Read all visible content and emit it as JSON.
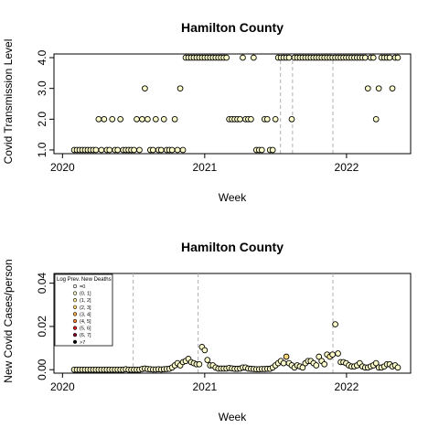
{
  "chart_data": [
    {
      "type": "scatter",
      "title": "Hamilton County",
      "xlabel": "Week",
      "ylabel": "Covid Transmission Level",
      "xlim": [
        "2019-12-10",
        "2022-06-15"
      ],
      "ylim": [
        0.88,
        4.12
      ],
      "xticks": [
        "2020",
        "2021",
        "2022"
      ],
      "xtick_dates": [
        "2020-01-01",
        "2021-01-01",
        "2022-01-01"
      ],
      "yticks": [
        "1.0",
        "2.0",
        "3.0",
        "4.0"
      ],
      "ytick_values": [
        1,
        2,
        3,
        4
      ],
      "vlines": [
        "2021-07-15",
        "2021-08-15",
        "2021-11-27"
      ],
      "point_fill": "#ffffcc",
      "point_stroke": "#000000",
      "x": [
        "2020-01-31",
        "2020-02-07",
        "2020-02-14",
        "2020-02-21",
        "2020-02-28",
        "2020-03-06",
        "2020-03-13",
        "2020-03-20",
        "2020-03-27",
        "2020-04-03",
        "2020-04-10",
        "2020-04-17",
        "2020-04-24",
        "2020-05-01",
        "2020-05-08",
        "2020-05-15",
        "2020-05-22",
        "2020-05-29",
        "2020-06-05",
        "2020-06-12",
        "2020-06-19",
        "2020-06-26",
        "2020-07-03",
        "2020-07-10",
        "2020-07-17",
        "2020-07-24",
        "2020-07-31",
        "2020-08-07",
        "2020-08-14",
        "2020-08-21",
        "2020-08-28",
        "2020-09-04",
        "2020-09-11",
        "2020-09-18",
        "2020-09-25",
        "2020-10-02",
        "2020-10-09",
        "2020-10-16",
        "2020-10-23",
        "2020-10-30",
        "2020-11-06",
        "2020-11-13",
        "2020-11-20",
        "2020-11-27",
        "2020-12-04",
        "2020-12-11",
        "2020-12-18",
        "2020-12-25",
        "2021-01-01",
        "2021-01-08",
        "2021-01-15",
        "2021-01-22",
        "2021-01-29",
        "2021-02-05",
        "2021-02-12",
        "2021-02-19",
        "2021-02-26",
        "2021-03-05",
        "2021-03-12",
        "2021-03-19",
        "2021-03-26",
        "2021-04-02",
        "2021-04-09",
        "2021-04-16",
        "2021-04-23",
        "2021-04-30",
        "2021-05-07",
        "2021-05-14",
        "2021-05-21",
        "2021-05-28",
        "2021-06-04",
        "2021-06-11",
        "2021-06-18",
        "2021-06-25",
        "2021-07-02",
        "2021-07-09",
        "2021-07-16",
        "2021-07-23",
        "2021-07-30",
        "2021-08-06",
        "2021-08-13",
        "2021-08-20",
        "2021-08-27",
        "2021-09-03",
        "2021-09-10",
        "2021-09-17",
        "2021-09-24",
        "2021-10-01",
        "2021-10-08",
        "2021-10-15",
        "2021-10-22",
        "2021-10-29",
        "2021-11-05",
        "2021-11-12",
        "2021-11-19",
        "2021-11-26",
        "2021-12-03",
        "2021-12-10",
        "2021-12-17",
        "2021-12-24",
        "2021-12-31",
        "2022-01-07",
        "2022-01-14",
        "2022-01-21",
        "2022-01-28",
        "2022-02-04",
        "2022-02-11",
        "2022-02-18",
        "2022-02-25",
        "2022-03-04",
        "2022-03-11",
        "2022-03-18",
        "2022-03-25",
        "2022-04-01",
        "2022-04-08",
        "2022-04-15",
        "2022-04-22",
        "2022-04-29",
        "2022-05-06",
        "2022-05-13"
      ],
      "y": [
        1,
        1,
        1,
        1,
        1,
        1,
        1,
        1,
        1,
        2,
        1,
        2,
        1,
        1,
        2,
        1,
        1,
        2,
        1,
        1,
        1,
        1,
        1,
        2,
        1,
        2,
        3,
        2,
        1,
        1,
        2,
        1,
        1,
        2,
        1,
        1,
        1,
        2,
        1,
        3,
        1,
        4,
        4,
        4,
        4,
        4,
        4,
        4,
        4,
        4,
        4,
        4,
        4,
        4,
        4,
        4,
        4,
        2,
        2,
        2,
        2,
        2,
        4,
        2,
        2,
        2,
        4,
        1,
        1,
        1,
        2,
        2,
        1,
        1,
        2,
        4,
        4,
        4,
        4,
        4,
        2,
        4,
        4,
        4,
        4,
        4,
        4,
        4,
        4,
        4,
        4,
        4,
        4,
        4,
        4,
        4,
        4,
        4,
        4,
        4,
        4,
        4,
        4,
        4,
        4,
        4,
        4,
        4,
        3,
        4,
        4,
        2,
        3,
        4,
        4,
        4,
        4,
        3,
        4,
        4
      ]
    },
    {
      "type": "scatter",
      "title": "Hamilton County",
      "xlabel": "Week",
      "ylabel": "New Covid Cases/person",
      "xlim": [
        "2019-12-10",
        "2022-06-15"
      ],
      "ylim": [
        -0.0016,
        0.0445
      ],
      "xticks": [
        "2020",
        "2021",
        "2022"
      ],
      "xtick_dates": [
        "2020-01-01",
        "2021-01-01",
        "2022-01-01"
      ],
      "yticks": [
        "0.00",
        "0.02",
        "0.04"
      ],
      "ytick_values": [
        0,
        0.02,
        0.04
      ],
      "vlines": [
        "2020-07-01",
        "2020-12-15",
        "2021-11-27"
      ],
      "legend": {
        "title": "Log Prev. New Deaths",
        "position": "top-left",
        "entries": [
          "=0",
          "(0, 1]",
          "(1, 2]",
          "(2, 3]",
          "(3, 4]",
          "(4, 5]",
          "(5, 6]",
          "(6, 7]",
          ">7"
        ],
        "colors": [
          "#ffffff",
          "#ffffcc",
          "#ffeda0",
          "#fed976",
          "#feb24c",
          "#fd8d3c",
          "#e31a1c",
          "#800026",
          "#000000"
        ]
      },
      "x": [
        "2020-01-31",
        "2020-02-07",
        "2020-02-14",
        "2020-02-21",
        "2020-02-28",
        "2020-03-06",
        "2020-03-13",
        "2020-03-20",
        "2020-03-27",
        "2020-04-03",
        "2020-04-10",
        "2020-04-17",
        "2020-04-24",
        "2020-05-01",
        "2020-05-08",
        "2020-05-15",
        "2020-05-22",
        "2020-05-29",
        "2020-06-05",
        "2020-06-12",
        "2020-06-19",
        "2020-06-26",
        "2020-07-03",
        "2020-07-10",
        "2020-07-17",
        "2020-07-24",
        "2020-07-31",
        "2020-08-07",
        "2020-08-14",
        "2020-08-21",
        "2020-08-28",
        "2020-09-04",
        "2020-09-11",
        "2020-09-18",
        "2020-09-25",
        "2020-10-02",
        "2020-10-09",
        "2020-10-16",
        "2020-10-23",
        "2020-10-30",
        "2020-11-06",
        "2020-11-13",
        "2020-11-20",
        "2020-11-27",
        "2020-12-04",
        "2020-12-11",
        "2020-12-18",
        "2020-12-25",
        "2021-01-01",
        "2021-01-08",
        "2021-01-15",
        "2021-01-22",
        "2021-01-29",
        "2021-02-05",
        "2021-02-12",
        "2021-02-19",
        "2021-02-26",
        "2021-03-05",
        "2021-03-12",
        "2021-03-19",
        "2021-03-26",
        "2021-04-02",
        "2021-04-09",
        "2021-04-16",
        "2021-04-23",
        "2021-04-30",
        "2021-05-07",
        "2021-05-14",
        "2021-05-21",
        "2021-05-28",
        "2021-06-04",
        "2021-06-11",
        "2021-06-18",
        "2021-06-25",
        "2021-07-02",
        "2021-07-09",
        "2021-07-16",
        "2021-07-23",
        "2021-07-30",
        "2021-08-06",
        "2021-08-13",
        "2021-08-20",
        "2021-08-27",
        "2021-09-03",
        "2021-09-10",
        "2021-09-17",
        "2021-09-24",
        "2021-10-01",
        "2021-10-08",
        "2021-10-15",
        "2021-10-22",
        "2021-10-29",
        "2021-11-05",
        "2021-11-12",
        "2021-11-19",
        "2021-11-26",
        "2021-12-03",
        "2021-12-10",
        "2021-12-17",
        "2021-12-24",
        "2021-12-31",
        "2022-01-07",
        "2022-01-14",
        "2022-01-21",
        "2022-01-28",
        "2022-02-04",
        "2022-02-11",
        "2022-02-18",
        "2022-02-25",
        "2022-03-04",
        "2022-03-11",
        "2022-03-18",
        "2022-03-25",
        "2022-04-01",
        "2022-04-08",
        "2022-04-15",
        "2022-04-22",
        "2022-04-29",
        "2022-05-06",
        "2022-05-13"
      ],
      "y": [
        0,
        0,
        0,
        0,
        0,
        0,
        0,
        0,
        0,
        0,
        0,
        0,
        0,
        0,
        0,
        0,
        0,
        0,
        0,
        0.0002,
        0,
        0,
        0,
        0,
        0,
        0.0003,
        0.0005,
        0.0003,
        0.0002,
        0.0001,
        0.0001,
        0.0002,
        0.0001,
        0.0002,
        0.0003,
        0.0004,
        0.001,
        0.002,
        0.003,
        0.002,
        0.0035,
        0.004,
        0.005,
        0.0035,
        0.003,
        0.0025,
        0.0025,
        0.0105,
        0.009,
        0.0045,
        0.002,
        0.002,
        0.001,
        0.0005,
        0.0005,
        0.0005,
        0.0005,
        0.0008,
        0.0006,
        0.0004,
        0.0004,
        0.0005,
        0.001,
        0.001,
        0.0005,
        0.0004,
        0.0003,
        0.0002,
        0.0002,
        0.0003,
        0.0003,
        0.0004,
        0.0004,
        0.001,
        0.002,
        0.003,
        0.004,
        0.003,
        0.006,
        0.003,
        0.002,
        0.001,
        0.002,
        0.0015,
        0.001,
        0.003,
        0.004,
        0.004,
        0.003,
        0.002,
        0.006,
        0.004,
        0.0025,
        0.007,
        0.006,
        0.007,
        0.021,
        0.0075,
        0.0035,
        0.0035,
        0.003,
        0.002,
        0.0015,
        0.0015,
        0.002,
        0.003,
        0.0015,
        0.001,
        0.001,
        0.0015,
        0.002,
        0.003,
        0.001,
        0.001,
        0.0015,
        0.0025,
        0.0025,
        0.0015,
        0.002,
        0.001
      ],
      "point_fills": [
        "#ffffcc",
        "#ffffcc",
        "#ffffcc",
        "#ffffcc",
        "#ffffcc",
        "#ffffcc",
        "#ffffcc",
        "#ffffcc",
        "#ffffcc",
        "#ffffcc",
        "#ffffcc",
        "#ffffcc",
        "#ffffcc",
        "#ffffcc",
        "#ffffcc",
        "#ffffcc",
        "#ffffcc",
        "#ffffcc",
        "#ffffcc",
        "#ffffcc",
        "#ffffcc",
        "#ffffcc",
        "#ffffcc",
        "#ffffcc",
        "#ffffcc",
        "#ffffcc",
        "#ffffcc",
        "#ffffcc",
        "#ffffcc",
        "#ffffcc",
        "#ffffcc",
        "#ffffcc",
        "#ffffcc",
        "#ffffcc",
        "#ffffcc",
        "#ffffcc",
        "#ffffcc",
        "#ffffcc",
        "#ffffcc",
        "#ffffcc",
        "#ffffcc",
        "#ffffcc",
        "#ffffcc",
        "#ffffcc",
        "#ffffcc",
        "#ffffcc",
        "#ffffcc",
        "#ffffcc",
        "#ffffcc",
        "#ffffcc",
        "#ffffcc",
        "#ffffcc",
        "#ffffcc",
        "#ffffcc",
        "#ffffcc",
        "#ffffcc",
        "#ffffcc",
        "#ffffcc",
        "#ffffcc",
        "#ffffcc",
        "#ffffcc",
        "#ffffcc",
        "#ffffcc",
        "#ffffcc",
        "#ffffcc",
        "#ffffcc",
        "#ffffcc",
        "#ffffcc",
        "#ffffcc",
        "#ffffcc",
        "#ffffcc",
        "#ffffcc",
        "#ffffcc",
        "#ffffcc",
        "#ffffcc",
        "#ffffcc",
        "#ffffcc",
        "#ffffcc",
        "#fed976",
        "#ffffcc",
        "#ffffcc",
        "#ffffcc",
        "#ffffcc",
        "#ffffcc",
        "#ffffcc",
        "#ffffcc",
        "#ffffcc",
        "#ffffcc",
        "#ffffcc",
        "#ffffcc",
        "#ffffcc",
        "#ffffcc",
        "#ffffcc",
        "#ffffcc",
        "#ffeda0",
        "#ffffcc",
        "#ffffcc",
        "#ffffcc",
        "#ffffcc",
        "#ffffcc",
        "#ffffcc",
        "#ffffcc",
        "#ffffcc",
        "#ffffcc",
        "#ffffcc",
        "#ffffcc",
        "#ffffcc",
        "#ffffcc",
        "#ffffcc",
        "#ffffcc",
        "#ffffcc",
        "#ffffcc",
        "#ffffcc",
        "#ffffcc",
        "#ffffcc",
        "#ffffcc",
        "#ffffcc",
        "#ffffcc",
        "#ffffcc",
        "#ffffcc"
      ]
    }
  ]
}
